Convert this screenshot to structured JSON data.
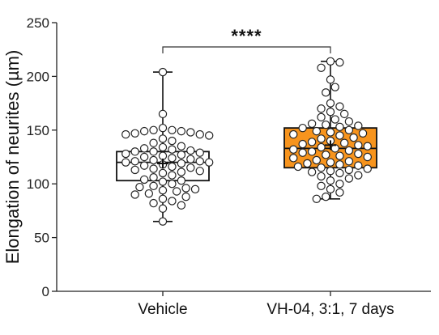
{
  "chart_data": {
    "type": "box",
    "ylabel": "Elongation of neurites (µm)",
    "ylim": [
      0,
      250
    ],
    "yticks": [
      0,
      50,
      100,
      150,
      200,
      250
    ],
    "categories": [
      "Vehicle",
      "VH-04, 3:1, 7 days"
    ],
    "box_fill": [
      "#ffffff",
      "#f7941d"
    ],
    "significance": "****",
    "series": [
      {
        "category": "Vehicle",
        "min": 65,
        "q1": 103,
        "median": 120,
        "q3": 130,
        "max": 204,
        "mean": 119,
        "points": [
          204,
          165,
          152,
          150,
          150,
          149,
          149,
          148,
          147,
          146,
          146,
          145,
          142,
          140,
          138,
          135,
          134,
          133,
          132,
          131,
          130,
          130,
          129,
          128,
          127,
          126,
          125,
          124,
          123,
          122,
          121,
          121,
          120,
          120,
          119,
          118,
          117,
          116,
          115,
          114,
          113,
          112,
          111,
          110,
          108,
          106,
          104,
          103,
          102,
          100,
          98,
          97,
          96,
          95,
          94,
          93,
          91,
          90,
          88,
          86,
          84,
          82,
          80,
          77,
          65
        ]
      },
      {
        "category": "VH-04, 3:1, 7 days",
        "min": 86,
        "q1": 115,
        "median": 133,
        "q3": 152,
        "max": 214,
        "mean": 136,
        "points": [
          214,
          213,
          208,
          197,
          190,
          185,
          175,
          172,
          170,
          167,
          165,
          162,
          160,
          158,
          156,
          155,
          154,
          153,
          152,
          150,
          149,
          148,
          147,
          146,
          145,
          143,
          142,
          140,
          139,
          138,
          137,
          136,
          135,
          134,
          133,
          132,
          131,
          130,
          129,
          128,
          127,
          126,
          125,
          124,
          122,
          121,
          120,
          119,
          118,
          117,
          116,
          115,
          114,
          113,
          112,
          111,
          110,
          108,
          107,
          105,
          103,
          100,
          98,
          95,
          92,
          88,
          86
        ]
      }
    ]
  }
}
